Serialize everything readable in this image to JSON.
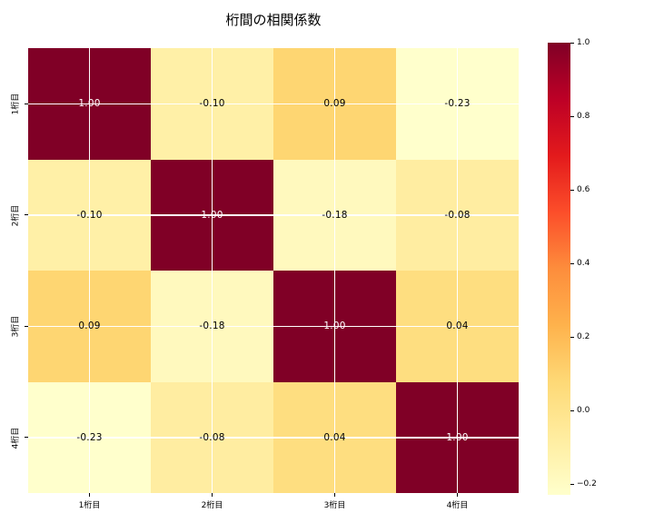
{
  "title": "桁間の相関係数",
  "chart_data": {
    "type": "heatmap",
    "title": "桁間の相関係数",
    "categories": [
      "1桁目",
      "2桁目",
      "3桁目",
      "4桁目"
    ],
    "x_tick_labels": [
      "1桁目",
      "2桁目",
      "3桁目",
      "4桁目"
    ],
    "y_tick_labels": [
      "1桁目",
      "2桁目",
      "3桁目",
      "4桁目"
    ],
    "matrix": [
      [
        1.0,
        -0.1,
        0.09,
        -0.23
      ],
      [
        -0.1,
        1.0,
        -0.18,
        -0.08
      ],
      [
        0.09,
        -0.18,
        1.0,
        0.04
      ],
      [
        -0.23,
        -0.08,
        0.04,
        1.0
      ]
    ],
    "cell_labels": [
      [
        "1.00",
        "-0.10",
        "0.09",
        "-0.23"
      ],
      [
        "-0.10",
        "1.00",
        "-0.18",
        "-0.08"
      ],
      [
        "0.09",
        "-0.18",
        "1.00",
        "0.04"
      ],
      [
        "-0.23",
        "-0.08",
        "0.04",
        "1.00"
      ]
    ],
    "cell_colors": [
      [
        "#800026",
        "#fff0a7",
        "#fed672",
        "#ffffcc"
      ],
      [
        "#fff0a7",
        "#800026",
        "#fff9be",
        "#ffeda1"
      ],
      [
        "#fed672",
        "#fff9be",
        "#800026",
        "#fede80"
      ],
      [
        "#ffffcc",
        "#ffeda1",
        "#fede80",
        "#800026"
      ]
    ],
    "cell_text_colors": [
      [
        "#ffffff",
        "#000000",
        "#000000",
        "#000000"
      ],
      [
        "#000000",
        "#ffffff",
        "#000000",
        "#000000"
      ],
      [
        "#000000",
        "#000000",
        "#ffffff",
        "#000000"
      ],
      [
        "#000000",
        "#000000",
        "#000000",
        "#ffffff"
      ]
    ],
    "colormap": "YlOrRd",
    "colormap_stops": [
      "#ffffcc",
      "#ffeda0",
      "#fed976",
      "#feb24c",
      "#fd8d3c",
      "#fc4e2a",
      "#e31a1c",
      "#bd0026",
      "#800026"
    ],
    "vmin": -0.23,
    "vmax": 1.0,
    "grid": true,
    "gridline_color": "#ffffff",
    "colorbar": {
      "position": "right",
      "tick_labels": [
        "1.0",
        "0.8",
        "0.6",
        "0.4",
        "0.2",
        "0.0",
        "−0.2"
      ],
      "tick_values": [
        1.0,
        0.8,
        0.6,
        0.4,
        0.2,
        0.0,
        -0.2
      ]
    }
  }
}
